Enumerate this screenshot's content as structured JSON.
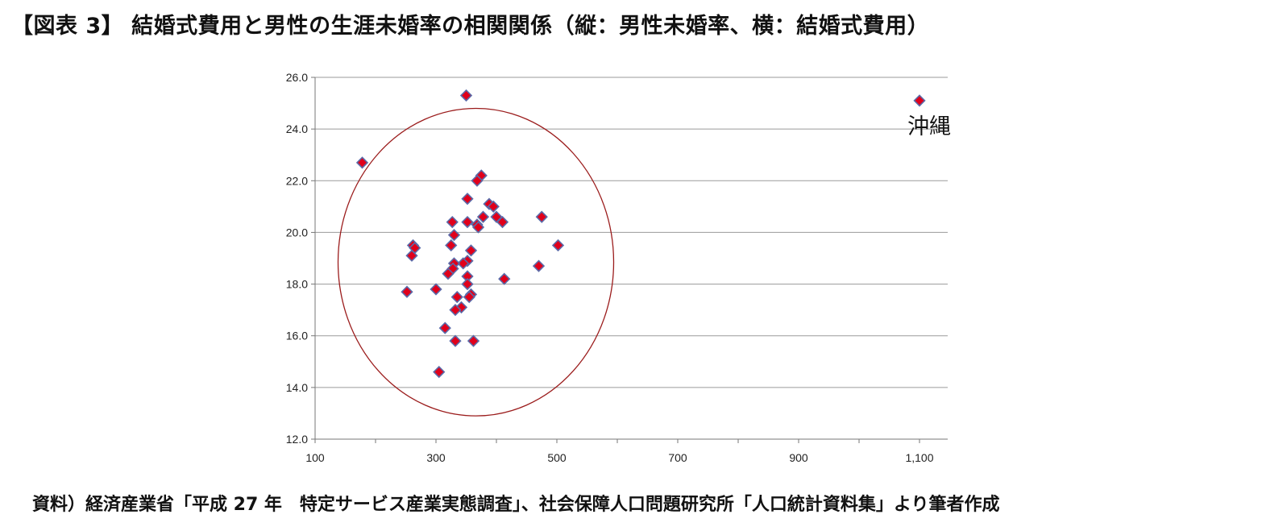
{
  "title": "【図表 3】 結婚式費用と男性の生涯未婚率の相関関係（縦：男性未婚率、横：結婚式費用）",
  "source": "資料）経済産業省「平成 27 年　特定サービス産業実態調査」、社会保障人口問題研究所「人口統計資料集」より筆者作成",
  "colors": {
    "marker_fill": "#e0001b",
    "marker_edge": "#5b6aa8",
    "circle": "#9b1c1c",
    "grid": "#9a9a9a"
  },
  "chart_data": {
    "type": "scatter",
    "title": "",
    "xlabel": "",
    "ylabel": "",
    "xlim": [
      100,
      1150
    ],
    "ylim": [
      12.0,
      26.0
    ],
    "xticks": [
      100,
      300,
      500,
      700,
      900,
      1100
    ],
    "xtick_labels": [
      "100",
      "300",
      "500",
      "700",
      "900",
      "1,100"
    ],
    "yticks": [
      12,
      14,
      16,
      18,
      20,
      22,
      24,
      26
    ],
    "ytick_labels": [
      "12.0",
      "14.0",
      "16.0",
      "18.0",
      "20.0",
      "22.0",
      "24.0",
      "26.0"
    ],
    "grid": "horizontal",
    "points": [
      [
        350,
        25.3
      ],
      [
        1100,
        25.1
      ],
      [
        178,
        22.7
      ],
      [
        375,
        22.2
      ],
      [
        368,
        22.0
      ],
      [
        352,
        21.3
      ],
      [
        388,
        21.1
      ],
      [
        395,
        21.0
      ],
      [
        327,
        20.4
      ],
      [
        352,
        20.4
      ],
      [
        368,
        20.3
      ],
      [
        378,
        20.6
      ],
      [
        400,
        20.6
      ],
      [
        410,
        20.4
      ],
      [
        475,
        20.6
      ],
      [
        370,
        20.2
      ],
      [
        330,
        19.9
      ],
      [
        262,
        19.5
      ],
      [
        265,
        19.4
      ],
      [
        502,
        19.5
      ],
      [
        325,
        19.5
      ],
      [
        358,
        19.3
      ],
      [
        260,
        19.1
      ],
      [
        352,
        18.9
      ],
      [
        345,
        18.8
      ],
      [
        330,
        18.8
      ],
      [
        328,
        18.6
      ],
      [
        470,
        18.7
      ],
      [
        320,
        18.4
      ],
      [
        352,
        18.3
      ],
      [
        413,
        18.2
      ],
      [
        352,
        18.0
      ],
      [
        252,
        17.7
      ],
      [
        300,
        17.8
      ],
      [
        358,
        17.6
      ],
      [
        335,
        17.5
      ],
      [
        355,
        17.5
      ],
      [
        342,
        17.1
      ],
      [
        332,
        17.0
      ],
      [
        315,
        16.3
      ],
      [
        332,
        15.8
      ],
      [
        362,
        15.8
      ],
      [
        305,
        14.6
      ]
    ],
    "annotations": [
      {
        "text": "沖縄",
        "x": 1100,
        "y": 25.1
      }
    ],
    "highlight_circle": {
      "cx": 366,
      "cy": 18.85,
      "rx": 228,
      "ry": 5.95
    }
  }
}
